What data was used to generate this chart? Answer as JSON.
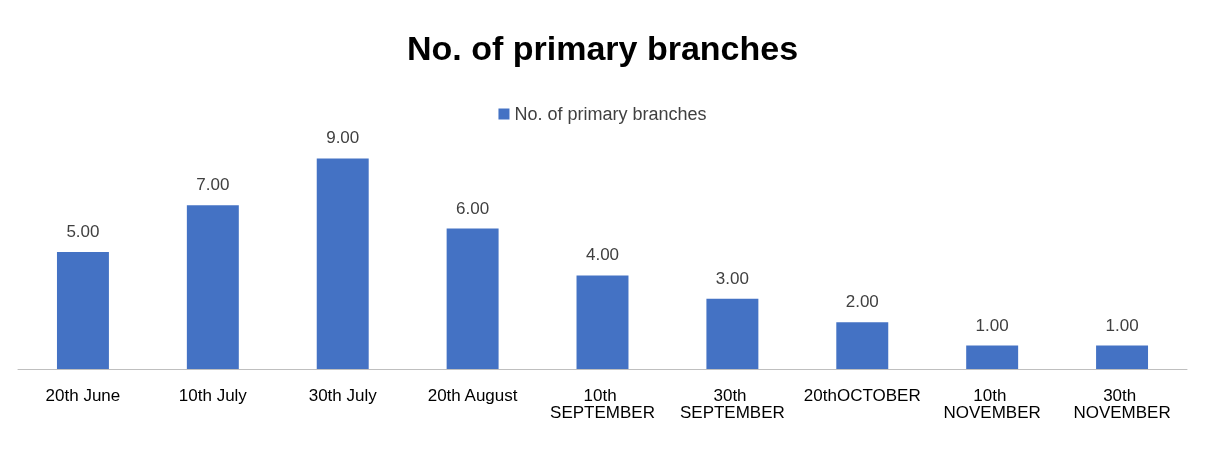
{
  "chart_data": {
    "type": "bar",
    "title": "No. of primary branches",
    "categories": [
      "20th June",
      "10th July",
      "30th July",
      "20th August",
      "10th SEPTEMBER",
      "30th SEPTEMBER",
      "20thOCTOBER",
      "10th NOVEMBER",
      "30th NOVEMBER"
    ],
    "series": [
      {
        "name": "No. of primary branches",
        "color": "#4472c4",
        "values": [
          5,
          7,
          9,
          6,
          4,
          3,
          2,
          1,
          1
        ],
        "value_labels": [
          "5.00",
          "7.00",
          "9.00",
          "6.00",
          "4.00",
          "3.00",
          "2.00",
          "1.00",
          "1.00"
        ]
      }
    ],
    "legend": "top",
    "grid": false
  }
}
